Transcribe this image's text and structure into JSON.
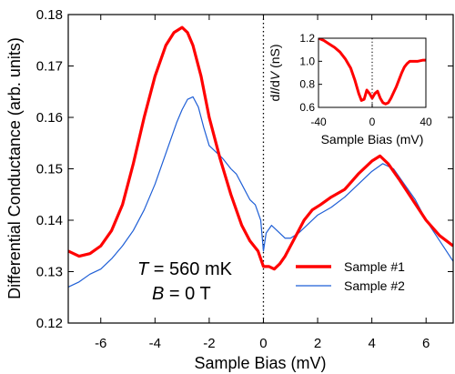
{
  "chart_data": [
    {
      "type": "line",
      "xlabel": "Sample Bias (mV)",
      "ylabel": "Differential Conductance (arb. units)",
      "xlim": [
        -7.2,
        7.0
      ],
      "ylim": [
        0.12,
        0.18
      ],
      "xticks": [
        "-6",
        "-4",
        "-2",
        "0",
        "2",
        "4",
        "6"
      ],
      "yticks": [
        "0.12",
        "0.13",
        "0.14",
        "0.15",
        "0.16",
        "0.17",
        "0.18"
      ],
      "zero_line": {
        "x": 0,
        "style": "dotted"
      },
      "annotations": [
        {
          "text_parts": [
            "T",
            " = 560 mK"
          ],
          "italic_first": true
        },
        {
          "text_parts": [
            "B",
            " = 0 T"
          ],
          "italic_first": true
        }
      ],
      "legend": {
        "placement": "bottom-right",
        "frame": false
      },
      "series": [
        {
          "name": "Sample #1",
          "color": "#ff0000",
          "x": [
            -7.2,
            -6.8,
            -6.4,
            -6.0,
            -5.6,
            -5.2,
            -4.8,
            -4.4,
            -4.0,
            -3.6,
            -3.3,
            -3.0,
            -2.8,
            -2.6,
            -2.3,
            -2.0,
            -1.6,
            -1.2,
            -0.8,
            -0.5,
            -0.2,
            0.0,
            0.2,
            0.4,
            0.6,
            0.8,
            1.0,
            1.2,
            1.5,
            1.8,
            2.1,
            2.5,
            3.0,
            3.5,
            4.0,
            4.3,
            4.6,
            5.0,
            5.5,
            6.0,
            6.5,
            7.0
          ],
          "y": [
            0.134,
            0.133,
            0.1335,
            0.135,
            0.138,
            0.143,
            0.151,
            0.16,
            0.168,
            0.174,
            0.1765,
            0.1775,
            0.1765,
            0.174,
            0.168,
            0.16,
            0.152,
            0.145,
            0.139,
            0.136,
            0.134,
            0.131,
            0.131,
            0.1305,
            0.1315,
            0.133,
            0.135,
            0.137,
            0.14,
            0.142,
            0.143,
            0.1445,
            0.146,
            0.149,
            0.1515,
            0.1525,
            0.151,
            0.148,
            0.144,
            0.14,
            0.137,
            0.135
          ]
        },
        {
          "name": "Sample #2",
          "color": "#1f5fd6",
          "x": [
            -7.2,
            -6.8,
            -6.4,
            -6.0,
            -5.6,
            -5.2,
            -4.8,
            -4.4,
            -4.0,
            -3.6,
            -3.2,
            -3.0,
            -2.8,
            -2.6,
            -2.4,
            -2.2,
            -2.0,
            -1.8,
            -1.5,
            -1.2,
            -1.0,
            -0.8,
            -0.5,
            -0.3,
            -0.1,
            0.0,
            0.1,
            0.3,
            0.5,
            0.8,
            1.0,
            1.3,
            1.6,
            2.0,
            2.5,
            3.0,
            3.5,
            4.0,
            4.4,
            4.8,
            5.2,
            5.6,
            6.0,
            6.5,
            7.0
          ],
          "y": [
            0.127,
            0.128,
            0.1295,
            0.1305,
            0.1325,
            0.135,
            0.138,
            0.142,
            0.147,
            0.153,
            0.159,
            0.1615,
            0.1635,
            0.164,
            0.162,
            0.158,
            0.1545,
            0.1535,
            0.152,
            0.15,
            0.149,
            0.147,
            0.144,
            0.143,
            0.14,
            0.134,
            0.1375,
            0.139,
            0.138,
            0.1365,
            0.1365,
            0.1375,
            0.139,
            0.141,
            0.1425,
            0.1445,
            0.147,
            0.1495,
            0.151,
            0.15,
            0.147,
            0.144,
            0.14,
            0.136,
            0.132
          ]
        }
      ]
    },
    {
      "type": "line",
      "xlabel": "Sample Bias (mV)",
      "ylabel": "dI/dV (nS)",
      "ylabel_parts": [
        "d",
        "I",
        "/d",
        "V",
        " (nS)"
      ],
      "xlim": [
        -40,
        40
      ],
      "ylim": [
        0.6,
        1.2
      ],
      "xticks": [
        "-40",
        "0",
        "40"
      ],
      "yticks": [
        "0.6",
        "0.8",
        "1.0",
        "1.2"
      ],
      "zero_line": {
        "x": 0,
        "style": "dotted"
      },
      "series": [
        {
          "color": "#ff0000",
          "x": [
            -40,
            -36,
            -32,
            -28,
            -24,
            -20,
            -16,
            -13,
            -10,
            -8,
            -6,
            -4,
            -2,
            0,
            2,
            4,
            6,
            8,
            10,
            12,
            14,
            16,
            18,
            20,
            22,
            24,
            26,
            28,
            30,
            34,
            38,
            40
          ],
          "y": [
            1.2,
            1.18,
            1.15,
            1.12,
            1.08,
            1.02,
            0.94,
            0.84,
            0.72,
            0.66,
            0.67,
            0.75,
            0.72,
            0.68,
            0.72,
            0.74,
            0.68,
            0.64,
            0.63,
            0.64,
            0.68,
            0.73,
            0.78,
            0.84,
            0.9,
            0.95,
            0.98,
            1.0,
            1.0,
            1.0,
            1.01,
            1.01
          ]
        }
      ]
    }
  ]
}
